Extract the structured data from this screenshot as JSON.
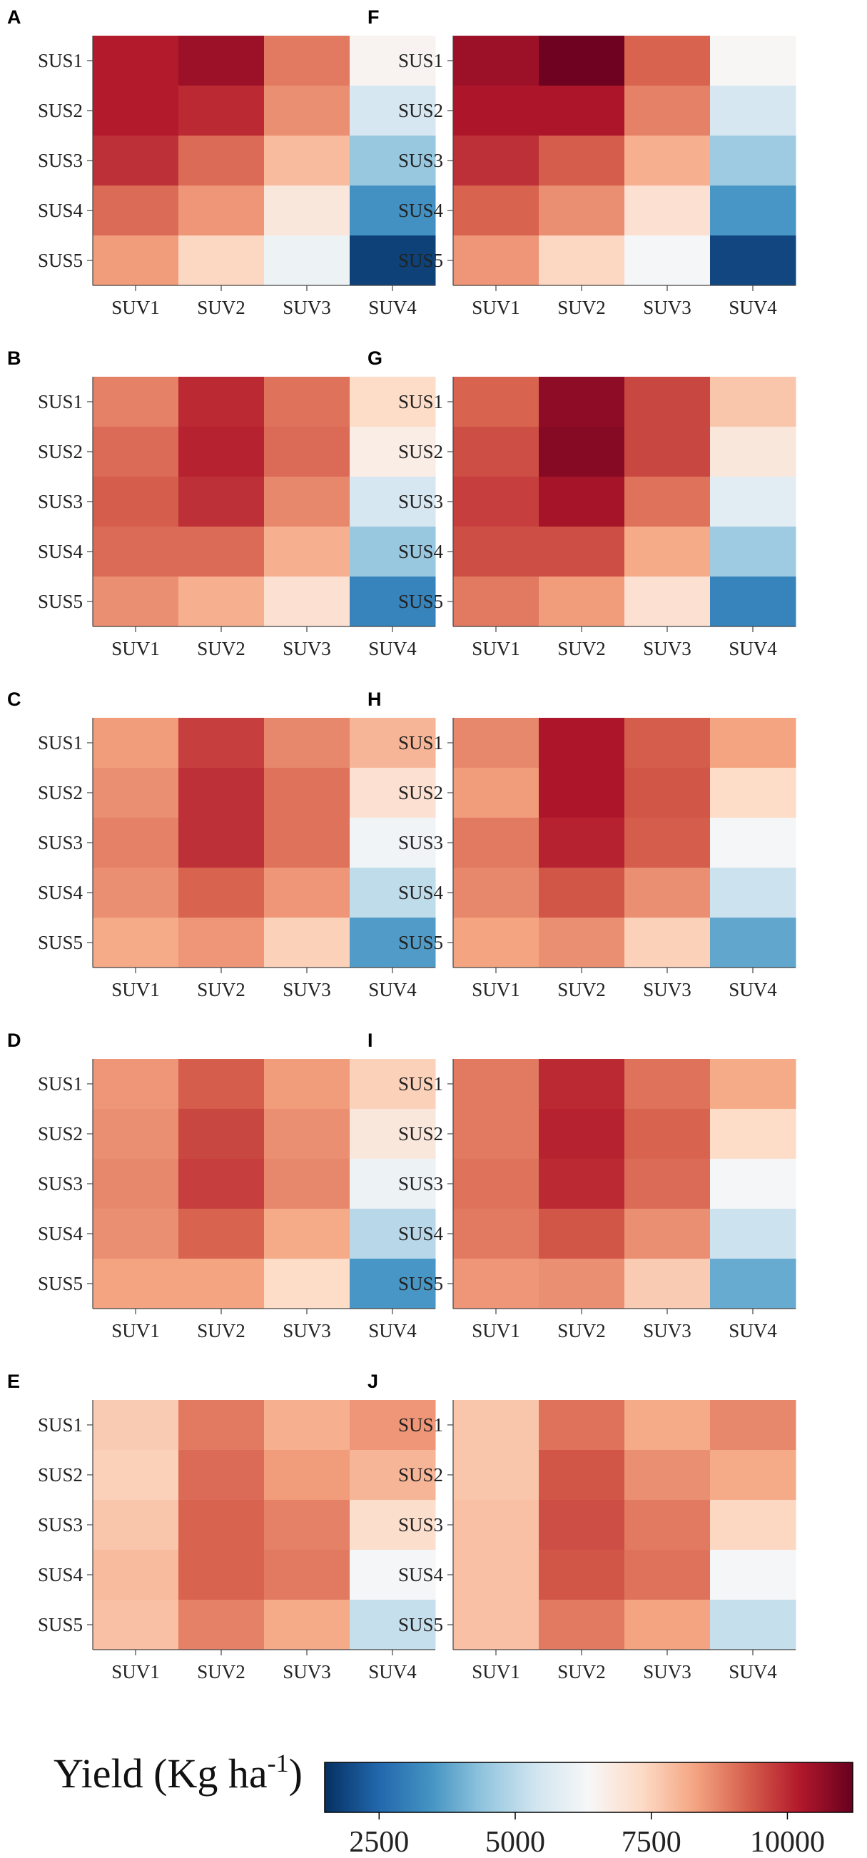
{
  "chart_data": [
    {
      "type": "heatmap",
      "panel": "A",
      "rows": [
        "SUS1",
        "SUS2",
        "SUS3",
        "SUS4",
        "SUS5"
      ],
      "cols": [
        "SUV1",
        "SUV2",
        "SUV3",
        "SUV4"
      ],
      "values": [
        [
          10200,
          10500,
          8900,
          6500
        ],
        [
          10200,
          10000,
          8600,
          5500
        ],
        [
          9900,
          9100,
          7900,
          4500
        ],
        [
          9100,
          8500,
          6900,
          3400
        ],
        [
          8400,
          7400,
          6100,
          1800
        ]
      ]
    },
    {
      "type": "heatmap",
      "panel": "B",
      "rows": [
        "SUS1",
        "SUS2",
        "SUS3",
        "SUS4",
        "SUS5"
      ],
      "cols": [
        "SUV1",
        "SUV2",
        "SUV3",
        "SUV4"
      ],
      "values": [
        [
          8800,
          10000,
          9000,
          7300
        ],
        [
          9100,
          10100,
          9100,
          6700
        ],
        [
          9300,
          9900,
          8700,
          5500
        ],
        [
          9100,
          9100,
          8100,
          4500
        ],
        [
          8600,
          8100,
          7100,
          3100
        ]
      ]
    },
    {
      "type": "heatmap",
      "panel": "C",
      "rows": [
        "SUS1",
        "SUS2",
        "SUS3",
        "SUS4",
        "SUS5"
      ],
      "cols": [
        "SUV1",
        "SUV2",
        "SUV3",
        "SUV4"
      ],
      "values": [
        [
          8400,
          9700,
          8700,
          8000
        ],
        [
          8600,
          9900,
          9000,
          7100
        ],
        [
          8800,
          9900,
          9000,
          6200
        ],
        [
          8600,
          9200,
          8500,
          5100
        ],
        [
          8200,
          8500,
          7500,
          3600
        ]
      ]
    },
    {
      "type": "heatmap",
      "panel": "D",
      "rows": [
        "SUS1",
        "SUS2",
        "SUS3",
        "SUS4",
        "SUS5"
      ],
      "cols": [
        "SUV1",
        "SUV2",
        "SUV3",
        "SUV4"
      ],
      "values": [
        [
          8500,
          9300,
          8400,
          7500
        ],
        [
          8600,
          9600,
          8600,
          6900
        ],
        [
          8700,
          9700,
          8700,
          6100
        ],
        [
          8600,
          9200,
          8200,
          5000
        ],
        [
          8300,
          8300,
          7300,
          3500
        ]
      ]
    },
    {
      "type": "heatmap",
      "panel": "E",
      "rows": [
        "SUS1",
        "SUS2",
        "SUS3",
        "SUS4",
        "SUS5"
      ],
      "cols": [
        "SUV1",
        "SUV2",
        "SUV3",
        "SUV4"
      ],
      "values": [
        [
          7600,
          8900,
          8100,
          8500
        ],
        [
          7500,
          9100,
          8400,
          8000
        ],
        [
          7700,
          9200,
          8800,
          7200
        ],
        [
          7900,
          9200,
          8900,
          6300
        ],
        [
          7800,
          8800,
          8200,
          5200
        ]
      ]
    },
    {
      "type": "heatmap",
      "panel": "F",
      "rows": [
        "SUS1",
        "SUS2",
        "SUS3",
        "SUS4",
        "SUS5"
      ],
      "cols": [
        "SUV1",
        "SUV2",
        "SUV3",
        "SUV4"
      ],
      "values": [
        [
          10500,
          11100,
          9200,
          6400
        ],
        [
          10300,
          10300,
          8800,
          5500
        ],
        [
          9900,
          9300,
          8100,
          4600
        ],
        [
          9200,
          8600,
          7100,
          3500
        ],
        [
          8500,
          7400,
          6300,
          1900
        ]
      ]
    },
    {
      "type": "heatmap",
      "panel": "G",
      "rows": [
        "SUS1",
        "SUS2",
        "SUS3",
        "SUS4",
        "SUS5"
      ],
      "cols": [
        "SUV1",
        "SUV2",
        "SUV3",
        "SUV4"
      ],
      "values": [
        [
          9200,
          10700,
          9600,
          7700
        ],
        [
          9500,
          10800,
          9600,
          6900
        ],
        [
          9700,
          10400,
          9000,
          5800
        ],
        [
          9500,
          9500,
          8200,
          4600
        ],
        [
          8900,
          8400,
          7100,
          3100
        ]
      ]
    },
    {
      "type": "heatmap",
      "panel": "H",
      "rows": [
        "SUS1",
        "SUS2",
        "SUS3",
        "SUS4",
        "SUS5"
      ],
      "cols": [
        "SUV1",
        "SUV2",
        "SUV3",
        "SUV4"
      ],
      "values": [
        [
          8700,
          10300,
          9300,
          8300
        ],
        [
          8400,
          10300,
          9400,
          7300
        ],
        [
          8900,
          10100,
          9300,
          6300
        ],
        [
          8700,
          9400,
          8600,
          5300
        ],
        [
          8300,
          8600,
          7500,
          3800
        ]
      ]
    },
    {
      "type": "heatmap",
      "panel": "I",
      "rows": [
        "SUS1",
        "SUS2",
        "SUS3",
        "SUS4",
        "SUS5"
      ],
      "cols": [
        "SUV1",
        "SUV2",
        "SUV3",
        "SUV4"
      ],
      "values": [
        [
          8900,
          10000,
          9000,
          8200
        ],
        [
          8900,
          10100,
          9200,
          7300
        ],
        [
          9000,
          10000,
          9100,
          6300
        ],
        [
          8900,
          9400,
          8600,
          5300
        ],
        [
          8500,
          8600,
          7600,
          3900
        ]
      ]
    },
    {
      "type": "heatmap",
      "panel": "J",
      "rows": [
        "SUS1",
        "SUS2",
        "SUS3",
        "SUS4",
        "SUS5"
      ],
      "cols": [
        "SUV1",
        "SUV2",
        "SUV3",
        "SUV4"
      ],
      "values": [
        [
          7700,
          9000,
          8200,
          8700
        ],
        [
          7700,
          9400,
          8600,
          8200
        ],
        [
          7800,
          9500,
          8900,
          7400
        ],
        [
          7800,
          9400,
          9000,
          6300
        ],
        [
          7800,
          8900,
          8300,
          5200
        ]
      ]
    }
  ],
  "colorbar": {
    "title": "Yield (Kg ha",
    "title_sup": "-1",
    "title_close": ")",
    "min": 1500,
    "max": 11200,
    "ticks": [
      2500,
      5000,
      7500,
      10000
    ],
    "colormap": "RdBu_r",
    "stops": [
      "#053061",
      "#2166ac",
      "#4393c3",
      "#92c5de",
      "#d1e5f0",
      "#f7f7f7",
      "#fddbc7",
      "#f4a582",
      "#d6604d",
      "#b2182b",
      "#67001f"
    ]
  }
}
